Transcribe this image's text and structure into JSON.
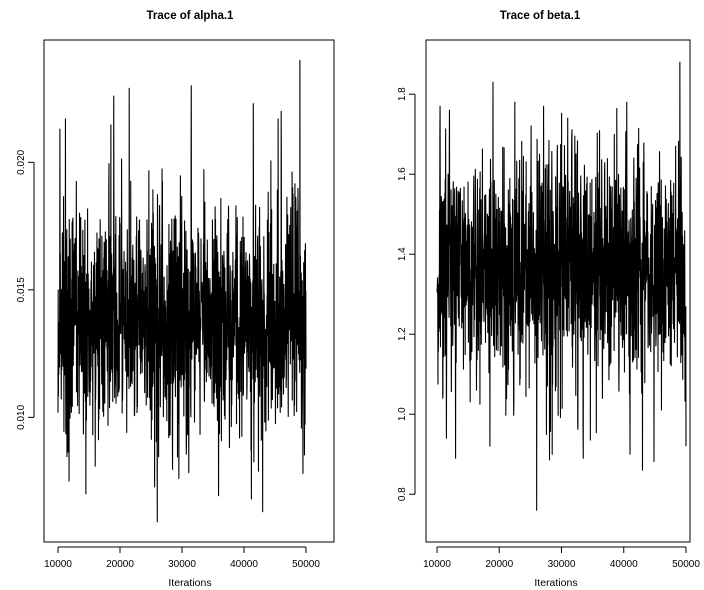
{
  "chart_data": [
    {
      "type": "line",
      "title": "Trace of alpha.1",
      "xlabel": "Iterations",
      "ylabel": "",
      "xlim": [
        10000,
        50000
      ],
      "ylim": [
        0.0057,
        0.0246
      ],
      "x_ticks": [
        10000,
        20000,
        30000,
        40000,
        50000
      ],
      "x_tick_labels": [
        "10000",
        "20000",
        "30000",
        "40000",
        "50000"
      ],
      "y_ticks": [
        0.01,
        0.015,
        0.02
      ],
      "y_tick_labels": [
        "0.010",
        "0.015",
        "0.020"
      ],
      "trace_summary": {
        "center": 0.0139,
        "typical_low": 0.0105,
        "typical_high": 0.0178,
        "min": 0.0059,
        "max": 0.024,
        "min_at_x": 26000,
        "max_at_x": 49000
      },
      "series": [
        {
          "values_note": "",
          "peaks": [
            {
              "x": 10300,
              "y": 0.0213
            },
            {
              "x": 11200,
              "y": 0.0217
            },
            {
              "x": 19000,
              "y": 0.0226
            },
            {
              "x": 21500,
              "y": 0.0229
            },
            {
              "x": 31500,
              "y": 0.023
            },
            {
              "x": 41500,
              "y": 0.0223
            },
            {
              "x": 46000,
              "y": 0.022
            },
            {
              "x": 49000,
              "y": 0.024
            }
          ],
          "troughs": [
            {
              "x": 11800,
              "y": 0.0075
            },
            {
              "x": 14500,
              "y": 0.007
            },
            {
              "x": 26000,
              "y": 0.0059
            },
            {
              "x": 29500,
              "y": 0.0076
            },
            {
              "x": 41200,
              "y": 0.0068
            },
            {
              "x": 43000,
              "y": 0.0063
            },
            {
              "x": 49500,
              "y": 0.0078
            }
          ]
        }
      ],
      "color": "#000000"
    },
    {
      "type": "line",
      "title": "Trace of beta.1",
      "xlabel": "Iterations",
      "ylabel": "",
      "xlim": [
        10000,
        50000
      ],
      "ylim": [
        0.718,
        1.923
      ],
      "x_ticks": [
        10000,
        20000,
        30000,
        40000,
        50000
      ],
      "x_tick_labels": [
        "10000",
        "20000",
        "30000",
        "40000",
        "50000"
      ],
      "y_ticks": [
        0.8,
        1.0,
        1.2,
        1.4,
        1.6,
        1.8
      ],
      "y_tick_labels": [
        "0.8",
        "1.0",
        "1.2",
        "1.4",
        "1.6",
        "1.8"
      ],
      "trace_summary": {
        "center": 1.36,
        "typical_low": 1.12,
        "typical_high": 1.6,
        "min": 0.76,
        "max": 1.88,
        "min_at_x": 26000,
        "max_at_x": 49000
      },
      "series": [
        {
          "values_note": "",
          "peaks": [
            {
              "x": 10500,
              "y": 1.77
            },
            {
              "x": 12000,
              "y": 1.76
            },
            {
              "x": 19000,
              "y": 1.83
            },
            {
              "x": 22500,
              "y": 1.78
            },
            {
              "x": 31000,
              "y": 1.74
            },
            {
              "x": 40500,
              "y": 1.78
            },
            {
              "x": 49000,
              "y": 1.88
            }
          ],
          "troughs": [
            {
              "x": 11500,
              "y": 0.94
            },
            {
              "x": 13000,
              "y": 0.89
            },
            {
              "x": 18500,
              "y": 0.92
            },
            {
              "x": 26000,
              "y": 0.76
            },
            {
              "x": 28500,
              "y": 0.9
            },
            {
              "x": 33500,
              "y": 0.89
            },
            {
              "x": 41000,
              "y": 0.9
            },
            {
              "x": 43000,
              "y": 0.86
            },
            {
              "x": 50000,
              "y": 0.92
            }
          ]
        }
      ],
      "color": "#000000"
    }
  ]
}
